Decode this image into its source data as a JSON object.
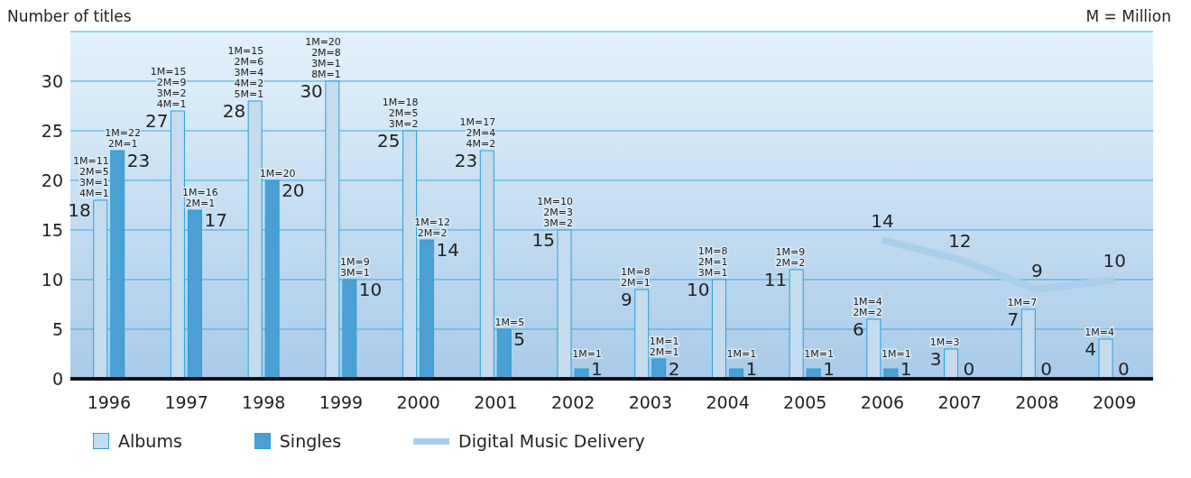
{
  "chart_data": {
    "type": "bar",
    "ylabel": "Number of titles",
    "categories": [
      "1996",
      "1997",
      "1998",
      "1999",
      "2000",
      "2001",
      "2002",
      "2003",
      "2004",
      "2005",
      "2006",
      "2007",
      "2008",
      "2009"
    ],
    "series": [
      {
        "name": "Albums",
        "color": "#c5dcef",
        "values": [
          18,
          27,
          28,
          30,
          25,
          23,
          15,
          9,
          10,
          11,
          6,
          3,
          7,
          4
        ]
      },
      {
        "name": "Singles",
        "color": "#4a9fd4",
        "values": [
          23,
          17,
          20,
          10,
          14,
          5,
          1,
          2,
          1,
          1,
          1,
          0,
          0,
          0
        ]
      },
      {
        "name": "Digital Music Delivery",
        "type": "line",
        "color": "#a8d0ea",
        "values": [
          null,
          null,
          null,
          null,
          null,
          null,
          null,
          null,
          null,
          null,
          14,
          12,
          9,
          10
        ]
      }
    ],
    "ylim": [
      0,
      35
    ],
    "yticks": [
      0,
      5,
      10,
      15,
      20,
      25,
      30
    ],
    "grid": "y",
    "data_labels": true,
    "legend": "bottom left",
    "marker": "none",
    "annotations": [
      "M = Million",
      {
        "text": "1M=11\n2M=5\n3M=1\n4M=1",
        "x": "1996",
        "y": 18
      },
      {
        "text": "1M=22\n2M=1",
        "x": "1996",
        "y": 23
      },
      {
        "text": "1M=15\n2M=9\n3M=2\n4M=1",
        "x": "1997",
        "y": 27
      },
      {
        "text": "1M=16\n2M=1",
        "x": "1997",
        "y": 17
      },
      {
        "text": "1M=15\n2M=6\n3M=4\n4M=2\n5M=1",
        "x": "1998",
        "y": 28
      },
      {
        "text": "1M=20",
        "x": "1998",
        "y": 20
      },
      {
        "text": "1M=20\n2M=8\n3M=1\n8M=1",
        "x": "1999",
        "y": 30
      },
      {
        "text": "1M=9\n3M=1",
        "x": "1999",
        "y": 10
      },
      {
        "text": "1M=18\n2M=5\n3M=2",
        "x": "2000",
        "y": 25
      },
      {
        "text": "1M=12\n2M=2",
        "x": "2000",
        "y": 14
      },
      {
        "text": "1M=17\n2M=4\n4M=2",
        "x": "2001",
        "y": 23
      },
      {
        "text": "1M=5",
        "x": "2001",
        "y": 5
      },
      {
        "text": "1M=10\n2M=3\n3M=2",
        "x": "2002",
        "y": 15
      },
      {
        "text": "1M=1",
        "x": "2002",
        "y": 1
      },
      {
        "text": "1M=8\n2M=1",
        "x": "2003",
        "y": 9
      },
      {
        "text": "1M=1\n2M=1",
        "x": "2003",
        "y": 2
      },
      {
        "text": "1M=8\n2M=1\n3M=1",
        "x": "2004",
        "y": 10
      },
      {
        "text": "1M=1",
        "x": "2004",
        "y": 1
      },
      {
        "text": "1M=9\n2M=2",
        "x": "2005",
        "y": 11
      },
      {
        "text": "1M=1",
        "x": "2005",
        "y": 1
      },
      {
        "text": "1M=4\n2M=2",
        "x": "2006",
        "y": 6
      },
      {
        "text": "1M=1",
        "x": "2006",
        "y": 1
      },
      {
        "text": "1M=3",
        "x": "2007",
        "y": 3
      },
      {
        "text": "1M=7",
        "x": "2008",
        "y": 7
      },
      {
        "text": "1M=4",
        "x": "2009",
        "y": 4
      }
    ]
  }
}
